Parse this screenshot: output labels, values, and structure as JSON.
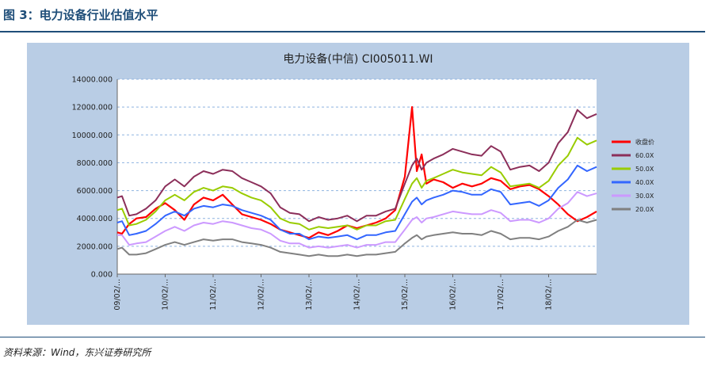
{
  "figure": {
    "title": "图 3：电力设备行业估值水平",
    "source": "资料来源：Wind，东兴证券研究所"
  },
  "chart_data": {
    "type": "line",
    "title": "电力设备(中信) CI005011.WI",
    "xlabel": "",
    "ylabel": "",
    "ylim": [
      0,
      14000
    ],
    "yticks": [
      "0.000",
      "2000.000",
      "4000.000",
      "6000.000",
      "8000.000",
      "10000.000",
      "12000.000",
      "14000.000"
    ],
    "xlim": [
      2009.0,
      2019.0
    ],
    "xticks": [
      "09/02/...",
      "10/02/...",
      "11/02/...",
      "12/02/...",
      "13/02/...",
      "14/02/...",
      "15/02/...",
      "16/02/...",
      "17/02/...",
      "18/02/..."
    ],
    "grid": true,
    "legend_position": "right",
    "x": [
      2009.0,
      2009.1,
      2009.25,
      2009.4,
      2009.6,
      2009.8,
      2010.0,
      2010.2,
      2010.4,
      2010.6,
      2010.8,
      2011.0,
      2011.2,
      2011.4,
      2011.6,
      2011.8,
      2012.0,
      2012.2,
      2012.4,
      2012.6,
      2012.8,
      2013.0,
      2013.2,
      2013.4,
      2013.6,
      2013.8,
      2014.0,
      2014.2,
      2014.4,
      2014.6,
      2014.8,
      2015.0,
      2015.15,
      2015.25,
      2015.35,
      2015.45,
      2015.6,
      2015.8,
      2016.0,
      2016.2,
      2016.4,
      2016.6,
      2016.8,
      2017.0,
      2017.2,
      2017.4,
      2017.6,
      2017.8,
      2018.0,
      2018.2,
      2018.4,
      2018.6,
      2018.8,
      2019.0
    ],
    "series": [
      {
        "name": "收盘价",
        "color": "#ff0000",
        "width": 2.2,
        "values": [
          3000,
          2900,
          3600,
          4000,
          4100,
          4700,
          5100,
          4600,
          3900,
          5000,
          5500,
          5300,
          5700,
          5000,
          4300,
          4100,
          3900,
          3600,
          3200,
          3000,
          2800,
          2600,
          3000,
          2800,
          3100,
          3500,
          3300,
          3500,
          3700,
          4000,
          4600,
          7000,
          12000,
          7400,
          8600,
          6500,
          6800,
          6600,
          6200,
          6500,
          6300,
          6500,
          6900,
          6700,
          6100,
          6300,
          6400,
          6100,
          5600,
          5000,
          4300,
          3800,
          4100,
          4500
        ]
      },
      {
        "name": "60.0X",
        "color": "#8c2f5a",
        "width": 2,
        "values": [
          5500,
          5600,
          4200,
          4300,
          4700,
          5300,
          6300,
          6800,
          6300,
          7000,
          7400,
          7200,
          7500,
          7400,
          6900,
          6600,
          6300,
          5800,
          4800,
          4400,
          4300,
          3800,
          4100,
          3900,
          4000,
          4200,
          3800,
          4200,
          4200,
          4500,
          4700,
          6500,
          7800,
          8300,
          7500,
          8000,
          8300,
          8600,
          9000,
          8800,
          8600,
          8500,
          9200,
          8800,
          7500,
          7700,
          7800,
          7400,
          8000,
          9400,
          10200,
          11800,
          11200,
          11500
        ]
      },
      {
        "name": "50.0X",
        "color": "#99cc00",
        "width": 2,
        "values": [
          4600,
          4700,
          3500,
          3600,
          3900,
          4500,
          5300,
          5700,
          5300,
          5900,
          6200,
          6000,
          6300,
          6200,
          5800,
          5500,
          5300,
          4800,
          4000,
          3700,
          3600,
          3200,
          3400,
          3300,
          3400,
          3500,
          3200,
          3500,
          3500,
          3800,
          3900,
          5400,
          6500,
          6900,
          6200,
          6700,
          6900,
          7200,
          7500,
          7300,
          7200,
          7100,
          7700,
          7300,
          6300,
          6400,
          6500,
          6200,
          6700,
          7800,
          8500,
          9800,
          9300,
          9600
        ]
      },
      {
        "name": "40.0X",
        "color": "#3366ff",
        "width": 2,
        "values": [
          3700,
          3800,
          2800,
          2900,
          3100,
          3600,
          4200,
          4500,
          4200,
          4700,
          4900,
          4800,
          5000,
          4900,
          4600,
          4400,
          4200,
          3900,
          3200,
          2900,
          2900,
          2500,
          2700,
          2600,
          2700,
          2800,
          2500,
          2800,
          2800,
          3000,
          3100,
          4300,
          5200,
          5500,
          5000,
          5300,
          5500,
          5700,
          6000,
          5900,
          5700,
          5700,
          6100,
          5900,
          5000,
          5100,
          5200,
          4900,
          5300,
          6200,
          6800,
          7800,
          7400,
          7700
        ]
      },
      {
        "name": "30.0X",
        "color": "#cc99ff",
        "width": 2,
        "values": [
          2800,
          2800,
          2100,
          2200,
          2300,
          2700,
          3100,
          3400,
          3100,
          3500,
          3700,
          3600,
          3800,
          3700,
          3500,
          3300,
          3200,
          2900,
          2400,
          2200,
          2200,
          1900,
          2000,
          1900,
          2000,
          2100,
          1900,
          2100,
          2100,
          2300,
          2300,
          3200,
          3900,
          4100,
          3700,
          4000,
          4100,
          4300,
          4500,
          4400,
          4300,
          4300,
          4600,
          4400,
          3800,
          3900,
          3900,
          3700,
          4000,
          4700,
          5100,
          5900,
          5600,
          5800
        ]
      },
      {
        "name": "20.0X",
        "color": "#808080",
        "width": 2,
        "values": [
          1800,
          1900,
          1400,
          1400,
          1500,
          1800,
          2100,
          2300,
          2100,
          2300,
          2500,
          2400,
          2500,
          2500,
          2300,
          2200,
          2100,
          1900,
          1600,
          1500,
          1400,
          1300,
          1400,
          1300,
          1300,
          1400,
          1300,
          1400,
          1400,
          1500,
          1600,
          2200,
          2600,
          2800,
          2500,
          2700,
          2800,
          2900,
          3000,
          2900,
          2900,
          2800,
          3100,
          2900,
          2500,
          2600,
          2600,
          2500,
          2700,
          3100,
          3400,
          3900,
          3700,
          3900
        ]
      }
    ]
  }
}
